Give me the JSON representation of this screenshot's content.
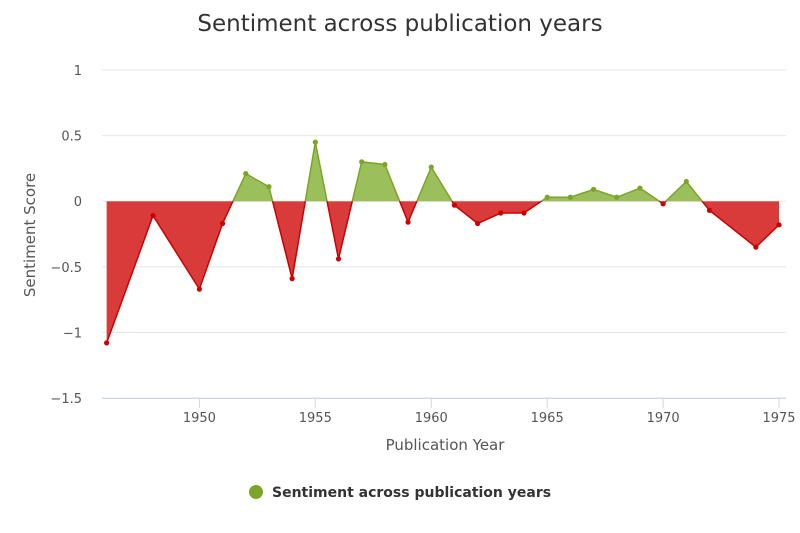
{
  "chart_data": {
    "type": "area",
    "title": "Sentiment across publication years",
    "xlabel": "Publication Year",
    "ylabel": "Sentiment Score",
    "xlim": [
      1945.8,
      1975.3
    ],
    "ylim": [
      -1.5,
      1
    ],
    "x_ticks": [
      "1950",
      "1955",
      "1960",
      "1965",
      "1970",
      "1975"
    ],
    "y_ticks": [
      "1",
      "0.5",
      "0",
      "−0.5",
      "−1",
      "−1.5"
    ],
    "grid": true,
    "legend_position": "bottom-center",
    "series": [
      {
        "name": "Sentiment across publication years",
        "positive_color": "#7ba428",
        "positive_fill": "#9bbf5b",
        "negative_color": "#cc0000",
        "negative_fill": "#d93b3b",
        "points": [
          {
            "x": 1946.0,
            "y": -1.08
          },
          {
            "x": 1948.0,
            "y": -0.11
          },
          {
            "x": 1950.0,
            "y": -0.67
          },
          {
            "x": 1951.0,
            "y": -0.17
          },
          {
            "x": 1952.0,
            "y": 0.21
          },
          {
            "x": 1953.0,
            "y": 0.11
          },
          {
            "x": 1954.0,
            "y": -0.59
          },
          {
            "x": 1955.0,
            "y": 0.45
          },
          {
            "x": 1956.0,
            "y": -0.44
          },
          {
            "x": 1957.0,
            "y": 0.3
          },
          {
            "x": 1958.0,
            "y": 0.28
          },
          {
            "x": 1959.0,
            "y": -0.16
          },
          {
            "x": 1960.0,
            "y": 0.26
          },
          {
            "x": 1961.0,
            "y": -0.03
          },
          {
            "x": 1962.0,
            "y": -0.17
          },
          {
            "x": 1963.0,
            "y": -0.09
          },
          {
            "x": 1964.0,
            "y": -0.09
          },
          {
            "x": 1965.0,
            "y": 0.03
          },
          {
            "x": 1966.0,
            "y": 0.03
          },
          {
            "x": 1967.0,
            "y": 0.09
          },
          {
            "x": 1968.0,
            "y": 0.03
          },
          {
            "x": 1969.0,
            "y": 0.1
          },
          {
            "x": 1970.0,
            "y": -0.02
          },
          {
            "x": 1971.0,
            "y": 0.15
          },
          {
            "x": 1972.0,
            "y": -0.07
          },
          {
            "x": 1974.0,
            "y": -0.35
          },
          {
            "x": 1975.0,
            "y": -0.18
          }
        ]
      }
    ]
  },
  "legend": {
    "label": "Sentiment across publication years",
    "marker_color": "#7ba428"
  }
}
